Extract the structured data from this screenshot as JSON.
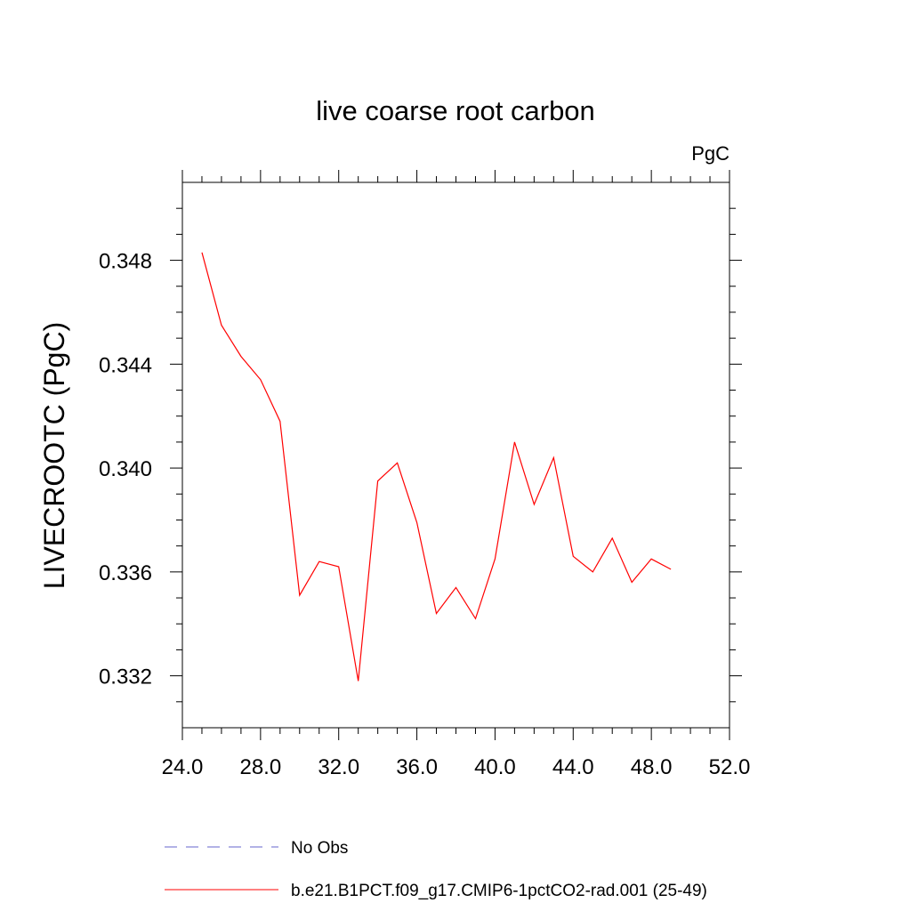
{
  "chart_data": {
    "type": "line",
    "title": "live coarse root carbon",
    "units_label": "PgC",
    "ylabel": "LIVECROOTC  (PgC)",
    "xlabel": "",
    "xlim": [
      24,
      52
    ],
    "ylim": [
      0.33,
      0.351
    ],
    "x_ticks": [
      24,
      28,
      32,
      36,
      40,
      44,
      48,
      52
    ],
    "x_tick_labels": [
      "24.0",
      "28.0",
      "32.0",
      "36.0",
      "40.0",
      "44.0",
      "48.0",
      "52.0"
    ],
    "y_ticks": [
      0.332,
      0.336,
      0.34,
      0.344,
      0.348
    ],
    "y_tick_labels": [
      "0.332",
      "0.336",
      "0.340",
      "0.344",
      "0.348"
    ],
    "grid": false,
    "legend_position": "bottom",
    "series": [
      {
        "name": "b.e21.B1PCT.f09_g17.CMIP6-1pctCO2-rad.001 (25-49)",
        "color": "#ff0000",
        "style": "solid",
        "x": [
          25,
          26,
          27,
          28,
          29,
          30,
          31,
          32,
          33,
          34,
          35,
          36,
          37,
          38,
          39,
          40,
          41,
          42,
          43,
          44,
          45,
          46,
          47,
          48,
          49
        ],
        "y": [
          0.3483,
          0.3455,
          0.3443,
          0.3434,
          0.3418,
          0.3351,
          0.3364,
          0.3362,
          0.3318,
          0.3395,
          0.3402,
          0.3379,
          0.3344,
          0.3354,
          0.3342,
          0.3365,
          0.341,
          0.3386,
          0.3404,
          0.3366,
          0.336,
          0.3373,
          0.3356,
          0.3365,
          0.3361
        ]
      },
      {
        "name": "No Obs",
        "color": "#6666cc",
        "style": "dashed",
        "x": [],
        "y": []
      }
    ]
  }
}
